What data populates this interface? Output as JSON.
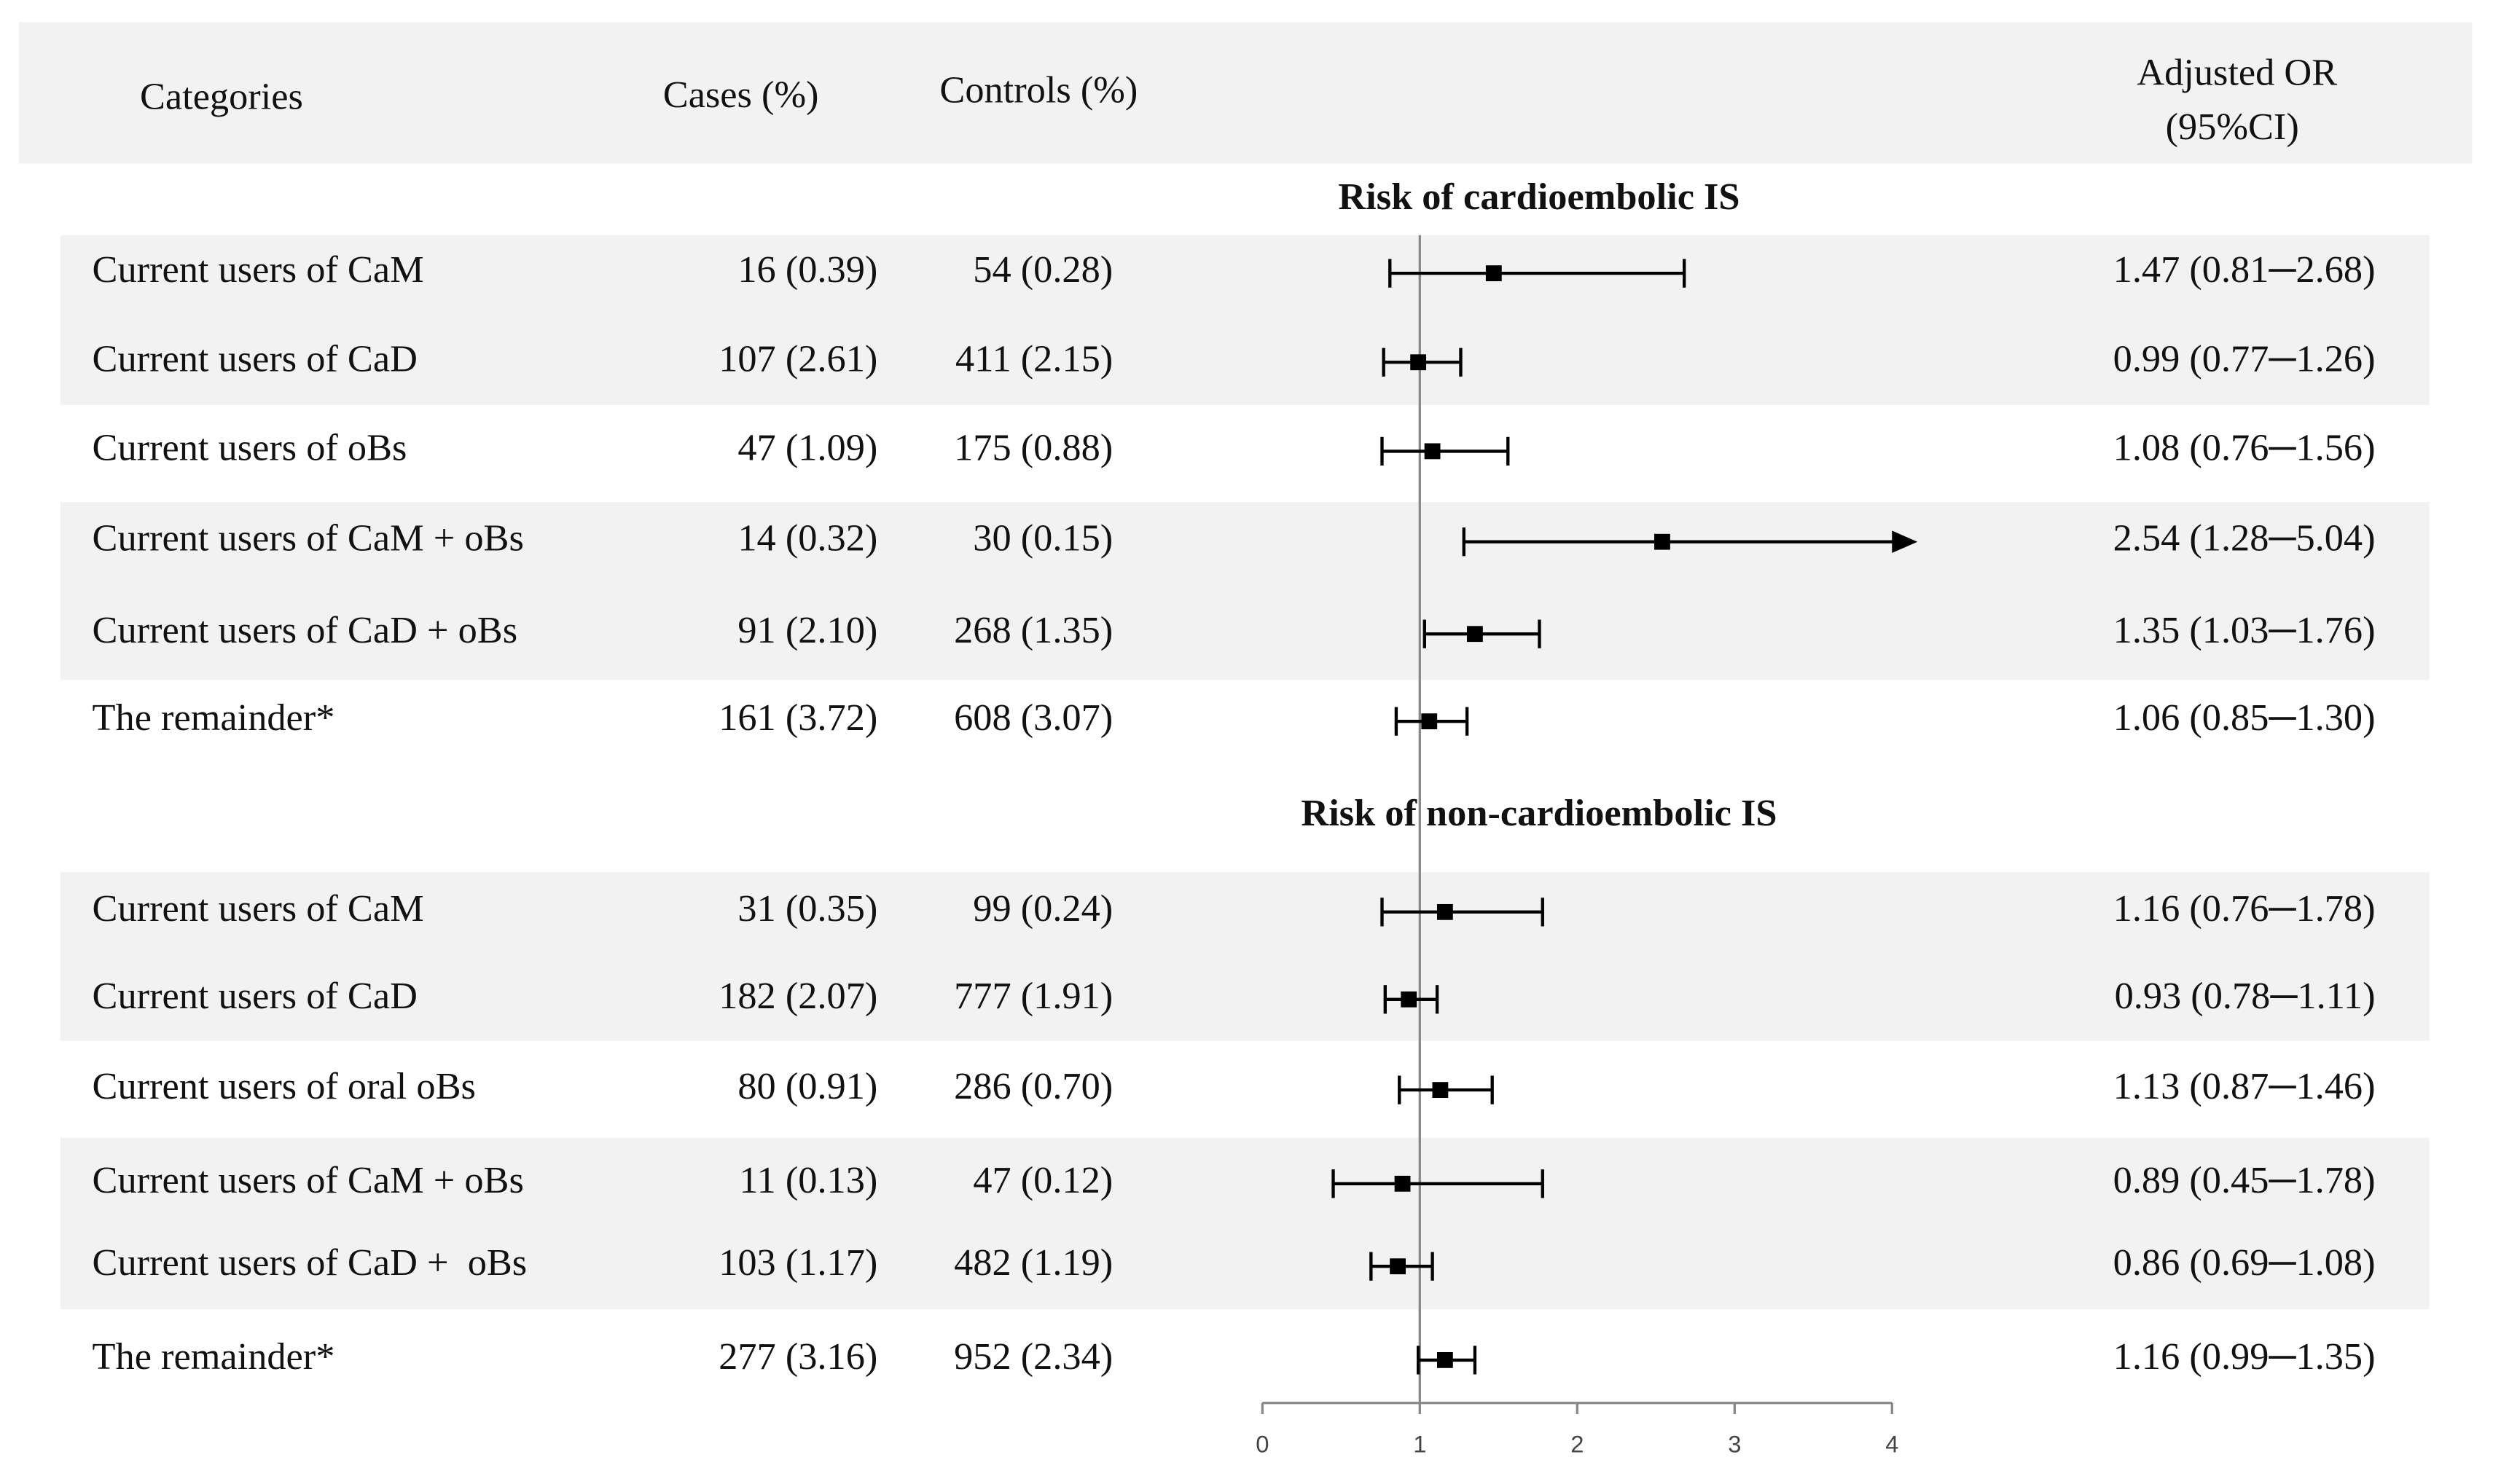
{
  "chart_data": {
    "type": "forest",
    "headers": {
      "category": "Categories",
      "cases": "Cases (%)",
      "controls": "Controls (%)",
      "estimate": [
        "Adjusted OR",
        "(95%CI)"
      ]
    },
    "groups": [
      {
        "title": "Risk of cardioembolic IS",
        "categories": [
          "Current users of CaM",
          "Current users of CaD",
          "Current users of oBs",
          "Current users of CaM + oBs",
          "Current users of CaD + oBs",
          "The remainder*"
        ],
        "cases": [
          "16 (0.39)",
          "107 (2.61)",
          "47 (1.09)",
          "14 (0.32)",
          "91 (2.10)",
          "161 (3.72)"
        ],
        "controls": [
          "54 (0.28)",
          "411 (2.15)",
          "175 (0.88)",
          "30 (0.15)",
          "268 (1.35)",
          "608 (3.07)"
        ],
        "values": [
          1.47,
          0.99,
          1.08,
          2.54,
          1.35,
          1.06
        ],
        "lower": [
          0.81,
          0.77,
          0.76,
          1.28,
          1.03,
          0.85
        ],
        "upper": [
          2.68,
          1.26,
          1.56,
          5.04,
          1.76,
          1.3
        ],
        "value_labels": [
          "1.47 (0.81─2.68)",
          "0.99 (0.77─1.26)",
          "1.08 (0.76─1.56)",
          "2.54 (1.28─5.04)",
          "1.35 (1.03─1.76)",
          "1.06 (0.85─1.30)"
        ]
      },
      {
        "title": "Risk of non-cardioembolic IS",
        "categories": [
          "Current users of CaM",
          "Current users of CaD",
          "Current users of oral oBs",
          "Current users of CaM + oBs",
          "Current users of CaD +  oBs",
          "The remainder*"
        ],
        "cases": [
          "31 (0.35)",
          "182 (2.07)",
          "80 (0.91)",
          "11 (0.13)",
          "103 (1.17)",
          "277 (3.16)"
        ],
        "controls": [
          "99 (0.24)",
          "777 (1.91)",
          "286 (0.70)",
          "47 (0.12)",
          "482 (1.19)",
          "952 (2.34)"
        ],
        "values": [
          1.16,
          0.93,
          1.13,
          0.89,
          0.86,
          1.16
        ],
        "lower": [
          0.76,
          0.78,
          0.87,
          0.45,
          0.69,
          0.99
        ],
        "upper": [
          1.78,
          1.11,
          1.46,
          1.78,
          1.08,
          1.35
        ],
        "value_labels": [
          "1.16 (0.76─1.78)",
          "0.93 (0.78─1.11)",
          "1.13 (0.87─1.46)",
          "0.89 (0.45─1.78)",
          "0.86 (0.69─1.08)",
          "1.16 (0.99─1.35)"
        ]
      }
    ],
    "xlim": [
      0,
      4
    ],
    "xticks": [
      0,
      1,
      2,
      3,
      4
    ],
    "ref_line": 1,
    "color": "#000000"
  }
}
